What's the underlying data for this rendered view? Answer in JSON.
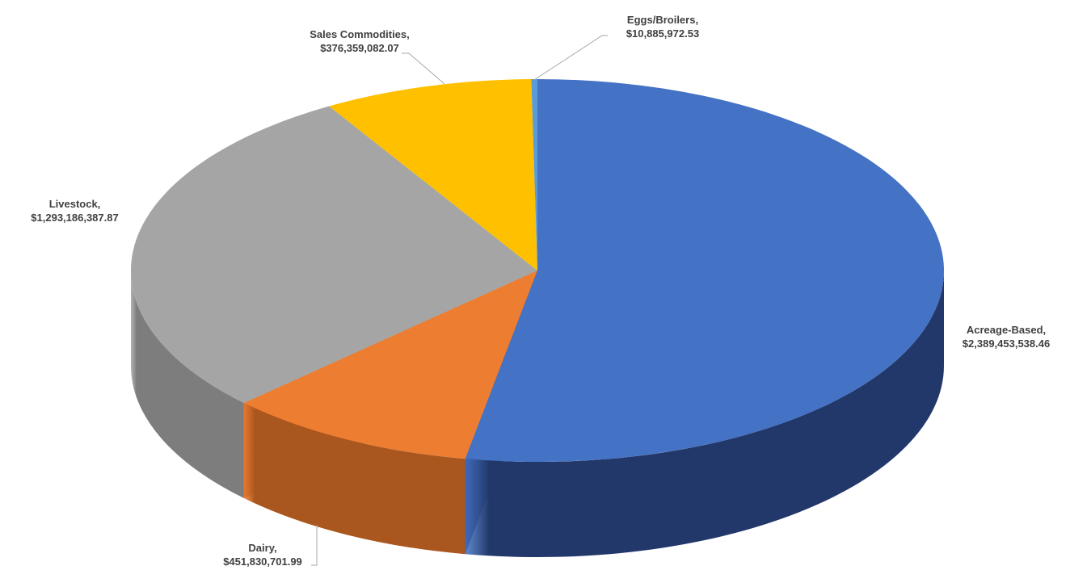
{
  "chart_data": {
    "type": "pie",
    "style": "3d",
    "title": "",
    "legend": "none",
    "data_labels": "category name and value, outside with leader lines",
    "slices": [
      {
        "name": "Acreage-Based",
        "label": "Acreage-Based,",
        "value": 2389453538.46,
        "value_text": "$2,389,453,538.46",
        "color": "#4472C4",
        "side_color": "#22386A"
      },
      {
        "name": "Dairy",
        "label": "Dairy,",
        "value": 451830701.99,
        "value_text": "$451,830,701.99",
        "color": "#ED7D31",
        "side_color": "#A9561F"
      },
      {
        "name": "Livestock",
        "label": "Livestock,",
        "value": 1293186387.87,
        "value_text": "$1,293,186,387.87",
        "color": "#A5A5A5",
        "side_color": "#7D7D7D"
      },
      {
        "name": "Sales Commodities",
        "label": "Sales Commodities,",
        "value": 376359082.07,
        "value_text": "$376,359,082.07",
        "color": "#FFC000",
        "side_color": "#B38600"
      },
      {
        "name": "Eggs/Broilers",
        "label": "Eggs/Broilers,",
        "value": 10885972.53,
        "value_text": "$10,885,972.53",
        "color": "#5B9BD5",
        "side_color": "#3A6A97"
      }
    ]
  }
}
